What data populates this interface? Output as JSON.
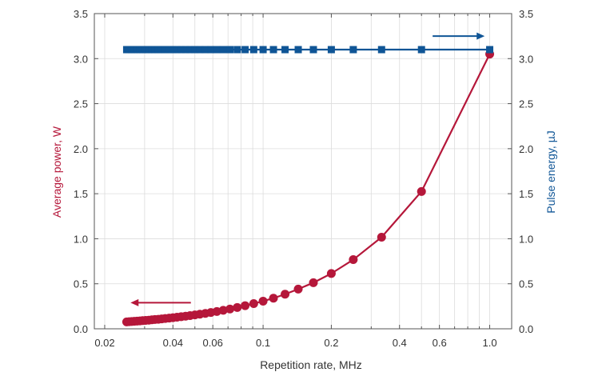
{
  "chart_data": {
    "type": "line",
    "title": "",
    "xlabel": "Repetition rate, MHz",
    "ylabel_left": "Average power, W",
    "ylabel_right": "Pulse energy, µJ",
    "x_scale": "log",
    "xlim": [
      0.018,
      1.25
    ],
    "ylim_left": [
      0,
      3.5
    ],
    "ylim_right": [
      0,
      3.5
    ],
    "grid": true,
    "x_ticks": [
      0.02,
      0.04,
      0.06,
      0.1,
      0.2,
      0.4,
      0.6,
      1.0
    ],
    "x_tick_labels": [
      "0.02",
      "0.04",
      "0.06",
      "0.1",
      "0.2",
      "0.4",
      "0.6",
      "1.0"
    ],
    "y_ticks": [
      0,
      0.5,
      1.0,
      1.5,
      2.0,
      2.5,
      3.0,
      3.5
    ],
    "y_tick_labels_left": [
      "0.0",
      "0.5",
      "1.0",
      "1.5",
      "2.0",
      "2.5",
      "3.0",
      "3.5"
    ],
    "y_tick_labels_right": [
      "0.0",
      "0.5",
      "1.0",
      "1.5",
      "2.0",
      "2.5",
      "3.0",
      "3.5"
    ],
    "x": [
      0.025,
      0.0256,
      0.0263,
      0.027,
      0.0278,
      0.0286,
      0.0294,
      0.0303,
      0.0313,
      0.0323,
      0.0333,
      0.0345,
      0.0357,
      0.037,
      0.0385,
      0.04,
      0.0417,
      0.0435,
      0.0455,
      0.0476,
      0.05,
      0.0526,
      0.0556,
      0.0588,
      0.0625,
      0.0667,
      0.0714,
      0.0769,
      0.0833,
      0.0909,
      0.1,
      0.1111,
      0.125,
      0.1429,
      0.1667,
      0.2,
      0.25,
      0.3333,
      0.5,
      1.0
    ],
    "series": [
      {
        "axis": "left",
        "color": "#b5173a",
        "marker": "circle",
        "values": [
          0.077,
          0.079,
          0.081,
          0.083,
          0.086,
          0.088,
          0.091,
          0.093,
          0.096,
          0.1,
          0.103,
          0.106,
          0.11,
          0.114,
          0.119,
          0.123,
          0.129,
          0.134,
          0.14,
          0.147,
          0.154,
          0.162,
          0.171,
          0.181,
          0.192,
          0.205,
          0.22,
          0.237,
          0.257,
          0.28,
          0.307,
          0.34,
          0.384,
          0.441,
          0.512,
          0.614,
          0.768,
          1.017,
          1.525,
          3.05
        ]
      },
      {
        "axis": "right",
        "color": "#0f5596",
        "marker": "square",
        "values": [
          3.1,
          3.1,
          3.1,
          3.1,
          3.1,
          3.1,
          3.1,
          3.1,
          3.1,
          3.1,
          3.1,
          3.1,
          3.1,
          3.1,
          3.1,
          3.1,
          3.1,
          3.1,
          3.1,
          3.1,
          3.1,
          3.1,
          3.1,
          3.1,
          3.1,
          3.1,
          3.1,
          3.1,
          3.1,
          3.1,
          3.1,
          3.1,
          3.1,
          3.1,
          3.1,
          3.1,
          3.1,
          3.1,
          3.1,
          3.1
        ]
      }
    ],
    "annotations": [
      {
        "type": "arrow",
        "direction": "left",
        "color": "#b5173a",
        "from": [
          0.048,
          0.29
        ],
        "to": [
          0.026,
          0.29
        ],
        "meaning": "red series uses left axis"
      },
      {
        "type": "arrow",
        "direction": "right",
        "color": "#0f5596",
        "from": [
          0.56,
          3.25
        ],
        "to": [
          0.95,
          3.25
        ],
        "meaning": "blue series uses right axis"
      }
    ]
  }
}
